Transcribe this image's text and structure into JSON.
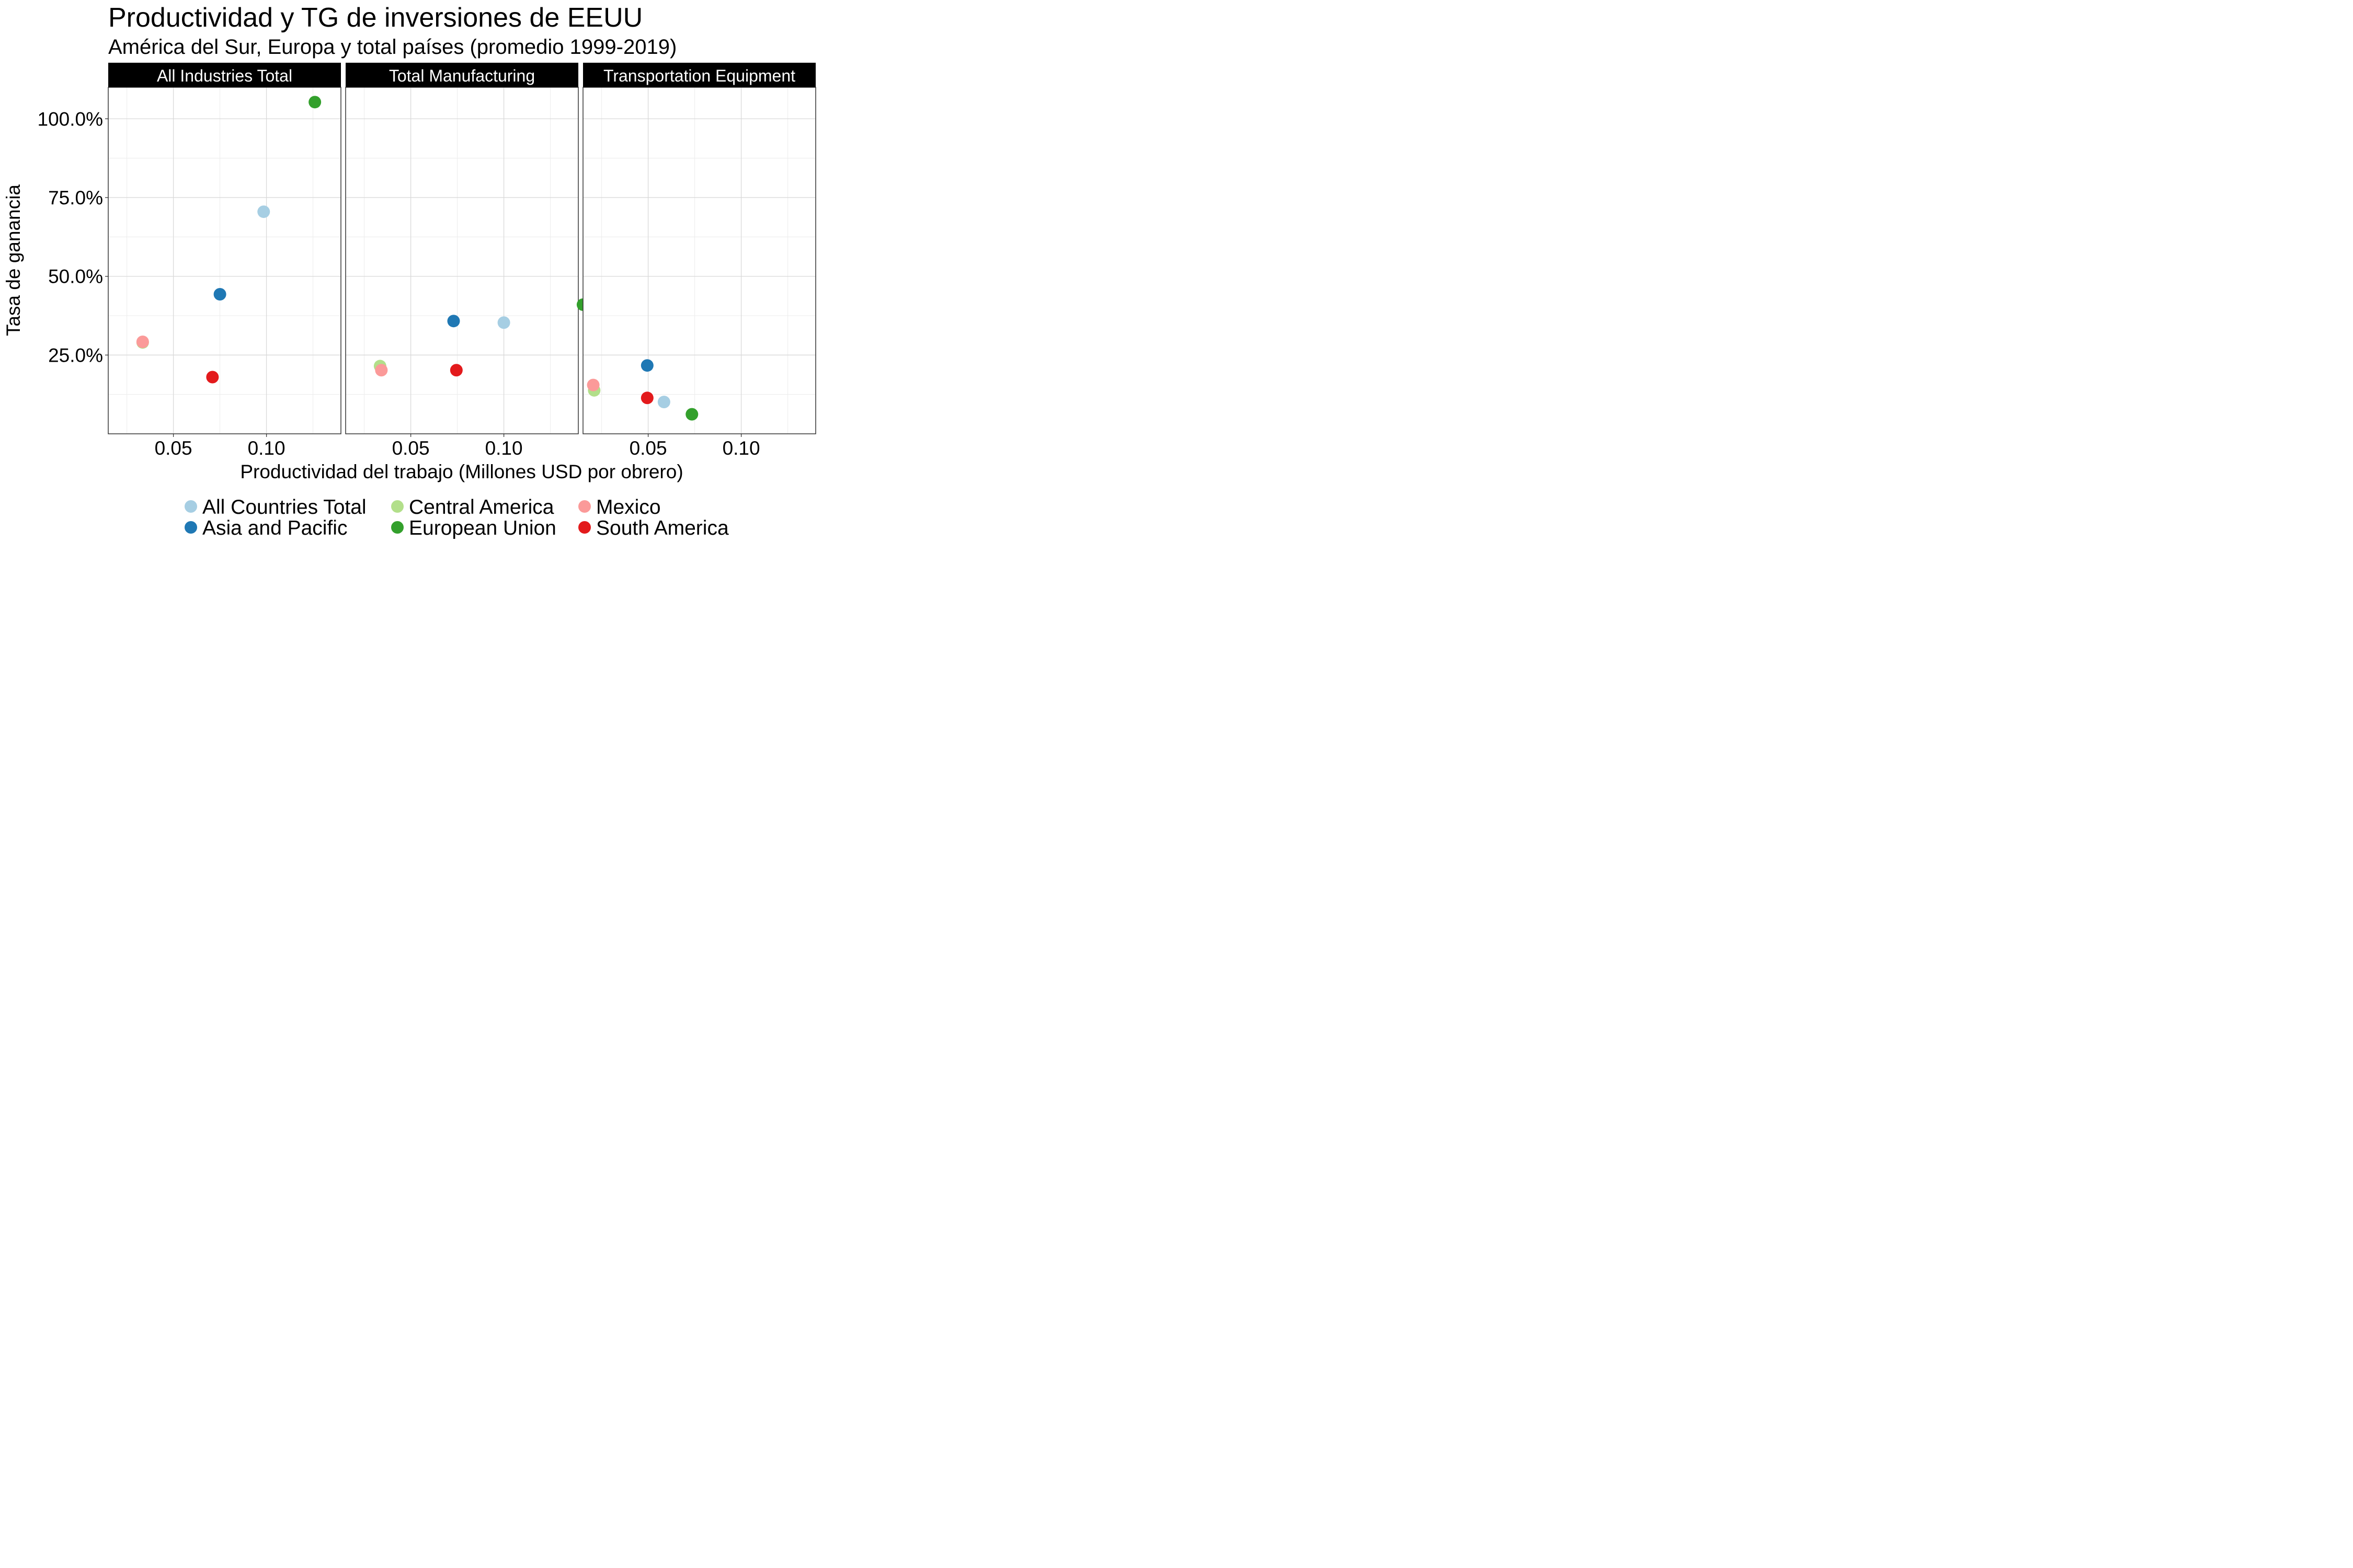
{
  "chart_data": {
    "type": "scatter",
    "title": "Productividad y TG de inversiones de EEUU",
    "subtitle": "América del Sur, Europa y total países (promedio 1999-2019)",
    "xlabel": "Productividad del trabajo (Millones USD por obrero)",
    "ylabel": "Tasa de ganancia",
    "xlim": [
      0.015,
      0.14
    ],
    "ylim": [
      0.0,
      1.1
    ],
    "x_ticks": [
      0.05,
      0.1
    ],
    "x_tick_labels": [
      "0.05",
      "0.10"
    ],
    "y_ticks": [
      0.25,
      0.5,
      0.75,
      1.0
    ],
    "y_tick_labels": [
      "25.0%",
      "50.0%",
      "75.0%",
      "100.0%"
    ],
    "grid": true,
    "legend_position": "bottom",
    "series": [
      {
        "name": "All Countries Total",
        "color": "#a6cee3"
      },
      {
        "name": "Asia and Pacific",
        "color": "#1f78b4"
      },
      {
        "name": "Central America",
        "color": "#b2df8a"
      },
      {
        "name": "European Union",
        "color": "#33a02c"
      },
      {
        "name": "Mexico",
        "color": "#fb9a99"
      },
      {
        "name": "South America",
        "color": "#e31a1c"
      }
    ],
    "panels": [
      {
        "label": "All Industries Total",
        "points": [
          {
            "series": "Central America",
            "x": 0.0335,
            "y": 0.29
          },
          {
            "series": "Mexico",
            "x": 0.0335,
            "y": 0.292
          },
          {
            "series": "South America",
            "x": 0.071,
            "y": 0.18
          },
          {
            "series": "Asia and Pacific",
            "x": 0.075,
            "y": 0.443
          },
          {
            "series": "All Countries Total",
            "x": 0.0985,
            "y": 0.705
          },
          {
            "series": "European Union",
            "x": 0.126,
            "y": 1.053
          }
        ]
      },
      {
        "label": "Total Manufacturing",
        "points": [
          {
            "series": "Central America",
            "x": 0.0335,
            "y": 0.215
          },
          {
            "series": "Mexico",
            "x": 0.0342,
            "y": 0.202
          },
          {
            "series": "Asia and Pacific",
            "x": 0.073,
            "y": 0.358
          },
          {
            "series": "South America",
            "x": 0.0745,
            "y": 0.202
          },
          {
            "series": "All Countries Total",
            "x": 0.1,
            "y": 0.353
          },
          {
            "series": "European Union",
            "x": 0.1425,
            "y": 0.41
          }
        ]
      },
      {
        "label": "Transportation Equipment",
        "points": [
          {
            "series": "Central America",
            "x": 0.021,
            "y": 0.138
          },
          {
            "series": "Mexico",
            "x": 0.0205,
            "y": 0.155
          },
          {
            "series": "Asia and Pacific",
            "x": 0.0495,
            "y": 0.217
          },
          {
            "series": "South America",
            "x": 0.0495,
            "y": 0.114
          },
          {
            "series": "All Countries Total",
            "x": 0.0585,
            "y": 0.101
          },
          {
            "series": "European Union",
            "x": 0.0735,
            "y": 0.062
          }
        ]
      }
    ]
  }
}
